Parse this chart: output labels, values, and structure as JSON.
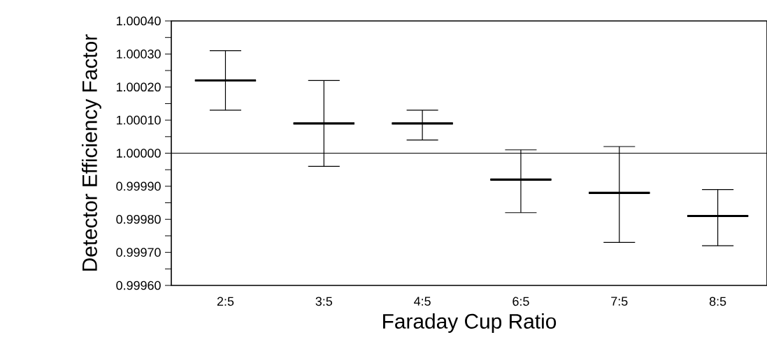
{
  "chart_data": {
    "type": "box",
    "xlabel": "Faraday Cup Ratio",
    "ylabel": "Detector Efficiency Factor",
    "categories": [
      "2:5",
      "3:5",
      "4:5",
      "6:5",
      "7:5",
      "8:5"
    ],
    "boxes": [
      {
        "low": 1.00013,
        "q1": 1.00022,
        "median": 1.00022,
        "q3": 1.00022,
        "high": 1.00031
      },
      {
        "low": 0.99996,
        "q1": 1.00009,
        "median": 1.00009,
        "q3": 1.00009,
        "high": 1.00022
      },
      {
        "low": 1.00004,
        "q1": 1.00009,
        "median": 1.00009,
        "q3": 1.00009,
        "high": 1.00013
      },
      {
        "low": 0.99982,
        "q1": 0.99992,
        "median": 0.99992,
        "q3": 0.99992,
        "high": 1.00001
      },
      {
        "low": 0.99973,
        "q1": 0.99988,
        "median": 0.99988,
        "q3": 0.99988,
        "high": 1.00002
      },
      {
        "low": 0.99972,
        "q1": 0.99981,
        "median": 0.99981,
        "q3": 0.99981,
        "high": 0.99989
      }
    ],
    "color": "#000000",
    "ylim": [
      0.9996,
      1.0004
    ],
    "yticks": [
      {
        "value": 0.9996,
        "label": "0.99960"
      },
      {
        "value": 0.99965,
        "label": null
      },
      {
        "value": 0.9997,
        "label": "0.99970"
      },
      {
        "value": 0.99975,
        "label": null
      },
      {
        "value": 0.9998,
        "label": "0.99980"
      },
      {
        "value": 0.99985,
        "label": null
      },
      {
        "value": 0.9999,
        "label": "0.99990"
      },
      {
        "value": 0.99995,
        "label": null
      },
      {
        "value": 1.0,
        "label": "1.00000"
      },
      {
        "value": 1.00005,
        "label": null
      },
      {
        "value": 1.0001,
        "label": "1.00010"
      },
      {
        "value": 1.00015,
        "label": null
      },
      {
        "value": 1.0002,
        "label": "1.00020"
      },
      {
        "value": 1.00025,
        "label": null
      },
      {
        "value": 1.0003,
        "label": "1.00030"
      },
      {
        "value": 1.00035,
        "label": null
      },
      {
        "value": 1.0004,
        "label": "1.00040"
      }
    ],
    "ref_lines": [
      {
        "axis": "y",
        "value": 1.0,
        "color": "#000000",
        "line_style": "solid"
      }
    ]
  }
}
